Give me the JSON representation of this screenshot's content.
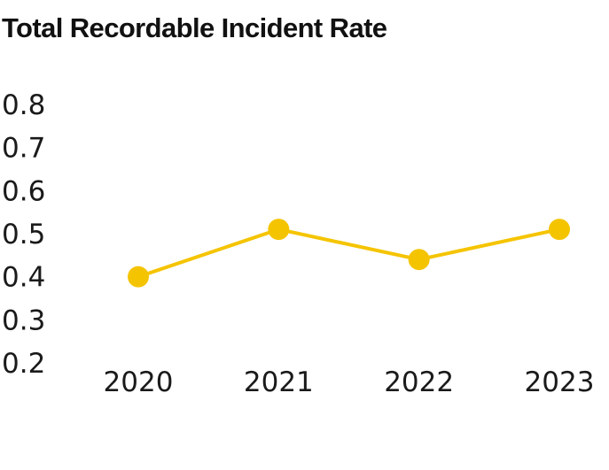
{
  "chart_data": {
    "type": "line",
    "title": "Total Recordable Incident Rate",
    "xlabel": "",
    "ylabel": "",
    "categories": [
      "2020",
      "2021",
      "2022",
      "2023"
    ],
    "series": [
      {
        "values": [
          0.4,
          0.51,
          0.44,
          0.51
        ]
      }
    ],
    "ylim": [
      0.2,
      0.8
    ],
    "yticks": [
      "0.8",
      "0.7",
      "0.6",
      "0.5",
      "0.4",
      "0.3",
      "0.2"
    ],
    "grid": false,
    "legend": "none",
    "colors": {
      "series": "#F5C400",
      "text": "#1a1a1a"
    }
  }
}
